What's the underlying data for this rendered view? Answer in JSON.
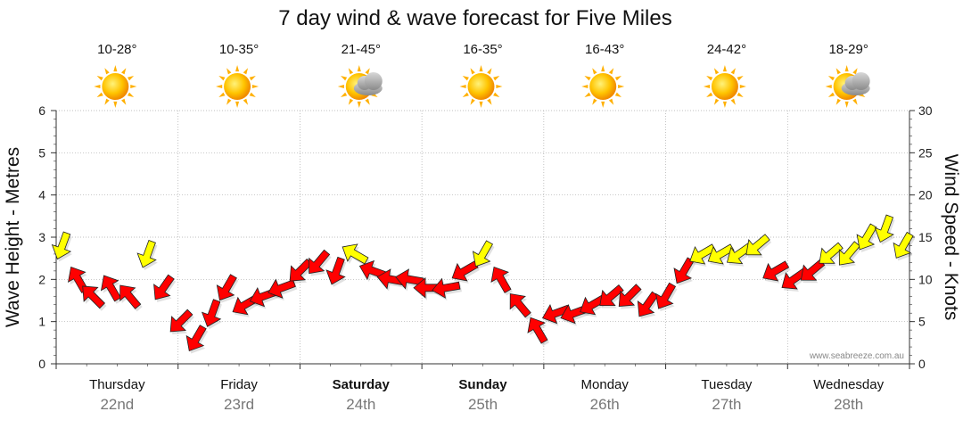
{
  "chart_data": {
    "type": "line",
    "title": "7 day wind & wave forecast for Five Miles",
    "ylabel_left": "Wave Height - Metres",
    "ylabel_right": "Wind Speed - Knots",
    "ylim_left": [
      0,
      6
    ],
    "yticks_left": [
      "0",
      "1",
      "2",
      "3",
      "4",
      "5",
      "6"
    ],
    "ylim_right": [
      0,
      30
    ],
    "yticks_right": [
      "0",
      "5",
      "10",
      "15",
      "20",
      "25",
      "30"
    ],
    "grid": true,
    "watermark": "www.seabreeze.com.au",
    "days": [
      {
        "name": "Thursday",
        "date": "22nd",
        "bold": false,
        "temp": "10-28°",
        "icon": "sun-icon"
      },
      {
        "name": "Friday",
        "date": "23rd",
        "bold": false,
        "temp": "10-35°",
        "icon": "sun-icon"
      },
      {
        "name": "Saturday",
        "date": "24th",
        "bold": true,
        "temp": "21-45°",
        "icon": "sun-cloud-icon"
      },
      {
        "name": "Sunday",
        "date": "25th",
        "bold": true,
        "temp": "16-35°",
        "icon": "sun-icon"
      },
      {
        "name": "Monday",
        "date": "26th",
        "bold": false,
        "temp": "16-43°",
        "icon": "sun-icon"
      },
      {
        "name": "Tuesday",
        "date": "27th",
        "bold": false,
        "temp": "24-42°",
        "icon": "sun-icon"
      },
      {
        "name": "Wednesday",
        "date": "28th",
        "bold": false,
        "temp": "18-29°",
        "icon": "sun-cloud-icon"
      }
    ],
    "colors": {
      "strong_wind": "#ff0000",
      "moderate_wind": "#ffff00",
      "arrow_outline": "#222222",
      "grid": "#aaaaaa",
      "axis": "#333333",
      "sun": "#ffb000",
      "cloud": "#9a9a9a"
    },
    "wind_series": {
      "name": "Wind Speed - Knots",
      "x_day": [
        0.05,
        0.18,
        0.3,
        0.45,
        0.6,
        0.75,
        0.88,
        1.02,
        1.15,
        1.28,
        1.4,
        1.55,
        1.7,
        1.85,
        2.0,
        2.15,
        2.3,
        2.45,
        2.6,
        2.75,
        2.9,
        3.05,
        3.2,
        3.35,
        3.5,
        3.65,
        3.8,
        3.95,
        4.1,
        4.25,
        4.4,
        4.55,
        4.7,
        4.85,
        5.0,
        5.15,
        5.3,
        5.45,
        5.6,
        5.75,
        5.9,
        6.05,
        6.2,
        6.35,
        6.5,
        6.65,
        6.8,
        6.95
      ],
      "knots": [
        14,
        10,
        8,
        9,
        8,
        13,
        9,
        5,
        3,
        6,
        9,
        7,
        8,
        9,
        11,
        12,
        11,
        13,
        11,
        10,
        10,
        9,
        9,
        11,
        13,
        10,
        7,
        4,
        6,
        6,
        7,
        8,
        8,
        7,
        8,
        11,
        13,
        13,
        13,
        14,
        11,
        10,
        11,
        13,
        13,
        15,
        16,
        14
      ],
      "category": [
        "moderate",
        "strong",
        "strong",
        "strong",
        "strong",
        "moderate",
        "strong",
        "strong",
        "strong",
        "strong",
        "strong",
        "strong",
        "strong",
        "strong",
        "strong",
        "strong",
        "strong",
        "moderate",
        "strong",
        "strong",
        "strong",
        "strong",
        "strong",
        "strong",
        "moderate",
        "strong",
        "strong",
        "strong",
        "strong",
        "strong",
        "strong",
        "strong",
        "strong",
        "strong",
        "strong",
        "strong",
        "moderate",
        "moderate",
        "moderate",
        "moderate",
        "strong",
        "strong",
        "strong",
        "moderate",
        "moderate",
        "moderate",
        "moderate",
        "moderate"
      ],
      "direction_deg": [
        200,
        330,
        315,
        330,
        320,
        200,
        215,
        225,
        210,
        200,
        210,
        240,
        250,
        250,
        225,
        220,
        200,
        300,
        290,
        280,
        280,
        270,
        260,
        240,
        210,
        330,
        320,
        330,
        250,
        250,
        240,
        230,
        225,
        215,
        210,
        210,
        240,
        240,
        235,
        230,
        240,
        235,
        230,
        230,
        220,
        210,
        200,
        210
      ]
    }
  }
}
